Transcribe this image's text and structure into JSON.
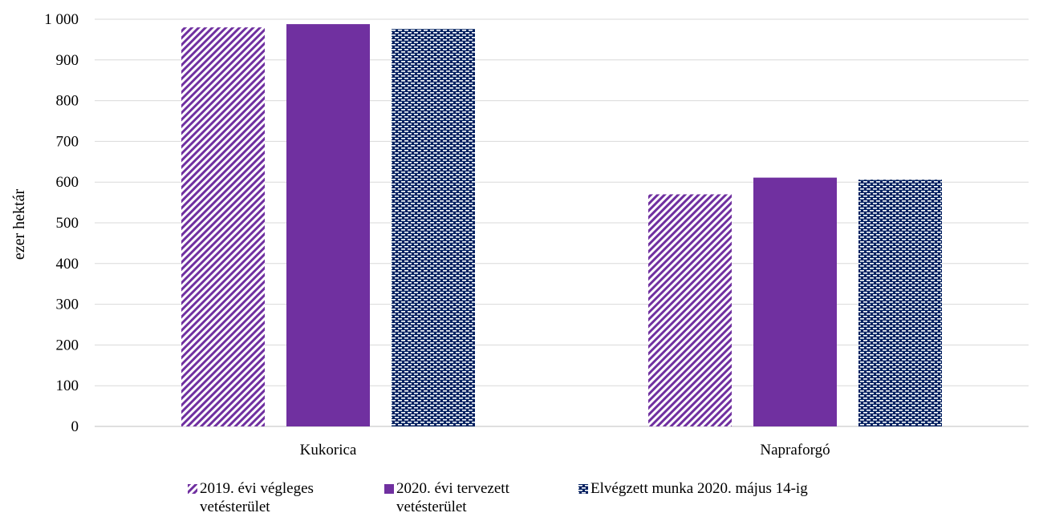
{
  "chart_data": {
    "type": "bar",
    "ylabel": "ezer hektár",
    "xlabel": "",
    "ylim": [
      0,
      1000
    ],
    "yticks": [
      0,
      100,
      200,
      300,
      400,
      500,
      600,
      700,
      800,
      900,
      1000
    ],
    "ytick_labels": [
      "0",
      "100",
      "200",
      "300",
      "400",
      "500",
      "600",
      "700",
      "800",
      "900",
      "1 000"
    ],
    "grid": true,
    "legend_position": "bottom",
    "categories": [
      "Kukorica",
      "Napraforgó"
    ],
    "series": [
      {
        "name": "2019. évi végleges vetésterület",
        "values": [
          980,
          570
        ],
        "pattern": "diagonal-stripes",
        "color": "#7030a0"
      },
      {
        "name": "2020. évi tervezett vetésterület",
        "values": [
          988,
          611
        ],
        "pattern": "solid",
        "color": "#7030a0"
      },
      {
        "name": "Elvégzett munka 2020. május 14-ig",
        "values": [
          976,
          606
        ],
        "pattern": "brick-dash",
        "color": "#002060"
      }
    ]
  },
  "legend": {
    "items": [
      {
        "label": "2019. évi végleges\nvetésterület"
      },
      {
        "label": "2020. évi tervezett\nvetésterület"
      },
      {
        "label": "Elvégzett munka 2020. május 14-ig"
      }
    ]
  }
}
